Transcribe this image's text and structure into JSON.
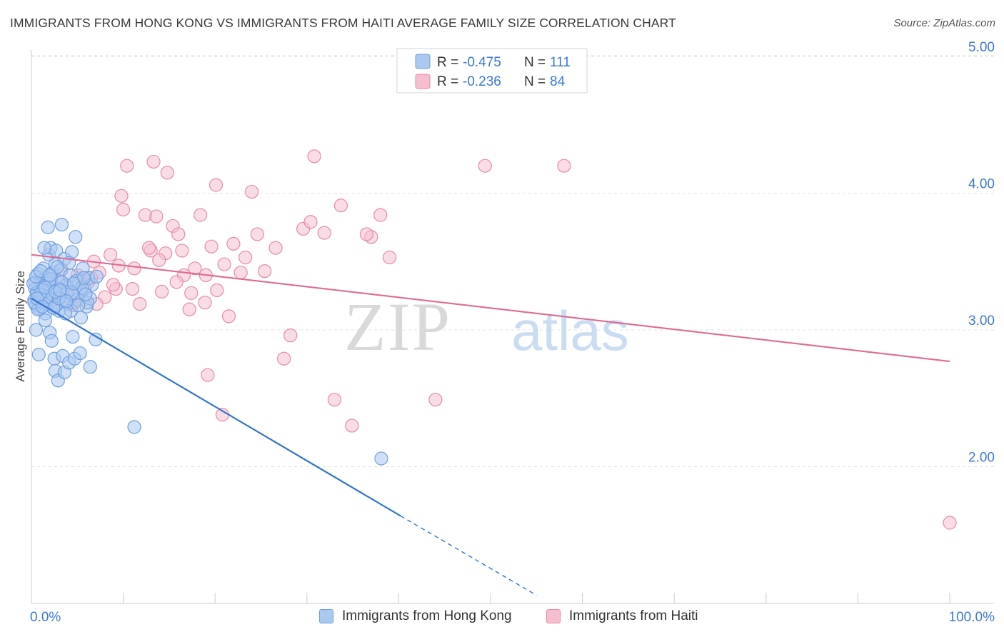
{
  "title": "IMMIGRANTS FROM HONG KONG VS IMMIGRANTS FROM HAITI AVERAGE FAMILY SIZE CORRELATION CHART",
  "source": "Source: ZipAtlas.com",
  "watermark": {
    "zip": "ZIP",
    "atlas": "atlas"
  },
  "colors": {
    "blue_fill": "#aac8f0",
    "blue_stroke": "#6f9fe0",
    "blue_line": "#2f74d0",
    "pink_fill": "#f6bfd0",
    "pink_stroke": "#e88aa8",
    "pink_line": "#e06a94",
    "value_text": "#3b78d8",
    "grid": "#e2e2e2"
  },
  "legend_top": {
    "r_label": "R = ",
    "n_label": "N = ",
    "entries": [
      {
        "r": "-0.475",
        "n": "111"
      },
      {
        "r": "-0.236",
        "n": "84"
      }
    ]
  },
  "legend_bottom": [
    {
      "label": "Immigrants from Hong Kong"
    },
    {
      "label": "Immigrants from Haiti"
    }
  ],
  "chart_data": {
    "type": "scatter",
    "xlabel": "",
    "ylabel": "Average Family Size",
    "xlim": [
      0,
      100
    ],
    "ylim": [
      1.0,
      5.1
    ],
    "x_tick_labels": [
      "0.0%",
      "100.0%"
    ],
    "y_ticks": [
      {
        "value": 2.0,
        "label": "2.00"
      },
      {
        "value": 3.0,
        "label": "3.00"
      },
      {
        "value": 4.0,
        "label": "4.00"
      },
      {
        "value": 5.0,
        "label": "5.00"
      }
    ],
    "grid": true,
    "legend_position": "top-center",
    "series": [
      {
        "name": "Immigrants from Hong Kong",
        "r": -0.475,
        "n": 111,
        "trendline": {
          "x1": 0,
          "y1": 3.23,
          "x2": 40.2,
          "y2": 1.64,
          "dashed_to_x": 55.0,
          "dashed_to_y": 1.06
        },
        "points": [
          [
            0.3,
            3.22
          ],
          [
            0.4,
            3.35
          ],
          [
            0.5,
            3.18
          ],
          [
            0.6,
            3.28
          ],
          [
            0.7,
            3.41
          ],
          [
            0.8,
            3.16
          ],
          [
            0.9,
            3.3
          ],
          [
            1.0,
            3.24
          ],
          [
            1.1,
            3.36
          ],
          [
            1.2,
            3.2
          ],
          [
            1.3,
            3.45
          ],
          [
            1.4,
            3.27
          ],
          [
            1.5,
            3.12
          ],
          [
            1.6,
            3.33
          ],
          [
            1.7,
            3.38
          ],
          [
            1.8,
            3.22
          ],
          [
            1.9,
            3.55
          ],
          [
            2.0,
            3.29
          ],
          [
            2.1,
            3.6
          ],
          [
            2.2,
            3.17
          ],
          [
            2.3,
            3.42
          ],
          [
            2.4,
            3.31
          ],
          [
            2.5,
            3.25
          ],
          [
            2.6,
            3.48
          ],
          [
            2.7,
            3.58
          ],
          [
            2.8,
            3.2
          ],
          [
            2.9,
            3.36
          ],
          [
            3.0,
            3.14
          ],
          [
            3.2,
            3.44
          ],
          [
            3.4,
            3.27
          ],
          [
            3.6,
            3.52
          ],
          [
            3.8,
            3.33
          ],
          [
            4.0,
            3.19
          ],
          [
            4.2,
            3.4
          ],
          [
            4.4,
            3.57
          ],
          [
            4.6,
            3.25
          ],
          [
            4.8,
            3.68
          ],
          [
            5.0,
            3.22
          ],
          [
            5.2,
            3.35
          ],
          [
            5.4,
            3.09
          ],
          [
            5.6,
            3.45
          ],
          [
            5.8,
            3.3
          ],
          [
            6.0,
            3.17
          ],
          [
            6.2,
            3.38
          ],
          [
            6.4,
            3.23
          ],
          [
            6.6,
            3.33
          ],
          [
            0.5,
            3.0
          ],
          [
            0.8,
            2.82
          ],
          [
            1.5,
            3.07
          ],
          [
            2.0,
            2.98
          ],
          [
            2.2,
            2.92
          ],
          [
            2.5,
            2.79
          ],
          [
            2.6,
            2.7
          ],
          [
            2.9,
            2.63
          ],
          [
            3.4,
            2.81
          ],
          [
            3.6,
            2.69
          ],
          [
            4.1,
            2.76
          ],
          [
            4.5,
            2.95
          ],
          [
            4.7,
            2.79
          ],
          [
            5.3,
            2.83
          ],
          [
            6.4,
            2.73
          ],
          [
            7.0,
            2.93
          ],
          [
            1.8,
            3.75
          ],
          [
            3.3,
            3.77
          ],
          [
            0.4,
            3.3
          ],
          [
            0.6,
            3.27
          ],
          [
            0.9,
            3.21
          ],
          [
            1.1,
            3.25
          ],
          [
            1.3,
            3.32
          ],
          [
            1.6,
            3.19
          ],
          [
            1.9,
            3.34
          ],
          [
            2.3,
            3.26
          ],
          [
            2.7,
            3.18
          ],
          [
            3.1,
            3.3
          ],
          [
            3.5,
            3.22
          ],
          [
            3.9,
            3.28
          ],
          [
            4.3,
            3.14
          ],
          [
            4.9,
            3.36
          ],
          [
            5.5,
            3.31
          ],
          [
            6.1,
            3.2
          ],
          [
            0.2,
            3.34
          ],
          [
            0.5,
            3.39
          ],
          [
            0.7,
            3.15
          ],
          [
            1.0,
            3.43
          ],
          [
            1.2,
            3.29
          ],
          [
            1.4,
            3.6
          ],
          [
            1.7,
            3.24
          ],
          [
            2.1,
            3.37
          ],
          [
            2.4,
            3.16
          ],
          [
            2.8,
            3.46
          ],
          [
            3.0,
            3.23
          ],
          [
            3.3,
            3.35
          ],
          [
            3.7,
            3.12
          ],
          [
            4.1,
            3.49
          ],
          [
            4.4,
            3.27
          ],
          [
            5.1,
            3.18
          ],
          [
            5.7,
            3.38
          ],
          [
            0.3,
            3.2
          ],
          [
            0.9,
            3.26
          ],
          [
            1.5,
            3.31
          ],
          [
            2.6,
            3.28
          ],
          [
            3.8,
            3.21
          ],
          [
            4.6,
            3.34
          ],
          [
            0.6,
            3.23
          ],
          [
            1.2,
            3.17
          ],
          [
            2.0,
            3.4
          ],
          [
            3.1,
            3.29
          ],
          [
            5.9,
            3.26
          ],
          [
            7.1,
            3.39
          ],
          [
            11.2,
            2.29
          ],
          [
            38.1,
            2.06
          ]
        ]
      },
      {
        "name": "Immigrants from Haiti",
        "r": -0.236,
        "n": 84,
        "trendline": {
          "x1": 0,
          "y1": 3.55,
          "x2": 100,
          "y2": 2.77
        },
        "points": [
          [
            0.6,
            3.27
          ],
          [
            1.2,
            3.31
          ],
          [
            1.8,
            3.22
          ],
          [
            2.3,
            3.36
          ],
          [
            2.8,
            3.26
          ],
          [
            3.3,
            3.44
          ],
          [
            3.9,
            3.3
          ],
          [
            4.5,
            3.18
          ],
          [
            5.0,
            3.4
          ],
          [
            5.6,
            3.22
          ],
          [
            6.2,
            3.35
          ],
          [
            6.8,
            3.5
          ],
          [
            7.4,
            3.42
          ],
          [
            8.0,
            3.24
          ],
          [
            8.6,
            3.55
          ],
          [
            9.2,
            3.3
          ],
          [
            9.8,
            3.98
          ],
          [
            10.4,
            4.2
          ],
          [
            11.2,
            3.45
          ],
          [
            11.8,
            3.19
          ],
          [
            12.4,
            3.84
          ],
          [
            13.0,
            3.58
          ],
          [
            13.6,
            3.83
          ],
          [
            14.2,
            3.28
          ],
          [
            14.8,
            4.15
          ],
          [
            15.4,
            3.76
          ],
          [
            16.0,
            3.7
          ],
          [
            16.6,
            3.4
          ],
          [
            17.2,
            3.15
          ],
          [
            17.8,
            3.45
          ],
          [
            18.4,
            3.84
          ],
          [
            19.0,
            3.4
          ],
          [
            19.6,
            3.61
          ],
          [
            20.2,
            3.29
          ],
          [
            21.0,
            3.48
          ],
          [
            21.5,
            3.1
          ],
          [
            22.0,
            3.63
          ],
          [
            22.8,
            3.42
          ],
          [
            23.3,
            3.53
          ],
          [
            24.0,
            4.01
          ],
          [
            24.6,
            3.7
          ],
          [
            25.4,
            3.43
          ],
          [
            26.6,
            3.6
          ],
          [
            27.5,
            2.79
          ],
          [
            28.2,
            2.96
          ],
          [
            29.6,
            3.74
          ],
          [
            30.4,
            3.79
          ],
          [
            30.8,
            4.27
          ],
          [
            31.9,
            3.71
          ],
          [
            33.7,
            3.91
          ],
          [
            37.0,
            3.68
          ],
          [
            36.5,
            3.7
          ],
          [
            38.0,
            3.84
          ],
          [
            39.0,
            3.53
          ],
          [
            14.6,
            3.56
          ],
          [
            16.4,
            3.58
          ],
          [
            19.2,
            2.67
          ],
          [
            20.8,
            2.38
          ],
          [
            34.9,
            2.3
          ],
          [
            33.0,
            2.49
          ],
          [
            13.3,
            4.23
          ],
          [
            20.1,
            4.06
          ],
          [
            10.0,
            3.88
          ],
          [
            12.8,
            3.6
          ],
          [
            8.9,
            3.33
          ],
          [
            6.5,
            3.38
          ],
          [
            3.8,
            3.25
          ],
          [
            2.0,
            3.21
          ],
          [
            1.1,
            3.34
          ],
          [
            5.2,
            3.28
          ],
          [
            7.1,
            3.19
          ],
          [
            9.5,
            3.47
          ],
          [
            11.0,
            3.3
          ],
          [
            13.9,
            3.51
          ],
          [
            15.8,
            3.35
          ],
          [
            17.4,
            3.27
          ],
          [
            18.9,
            3.2
          ],
          [
            4.6,
            3.2
          ],
          [
            3.0,
            3.36
          ],
          [
            2.5,
            3.29
          ],
          [
            44.0,
            2.49
          ],
          [
            49.4,
            4.2
          ],
          [
            58.0,
            4.2
          ],
          [
            100.0,
            1.59
          ]
        ]
      }
    ]
  }
}
